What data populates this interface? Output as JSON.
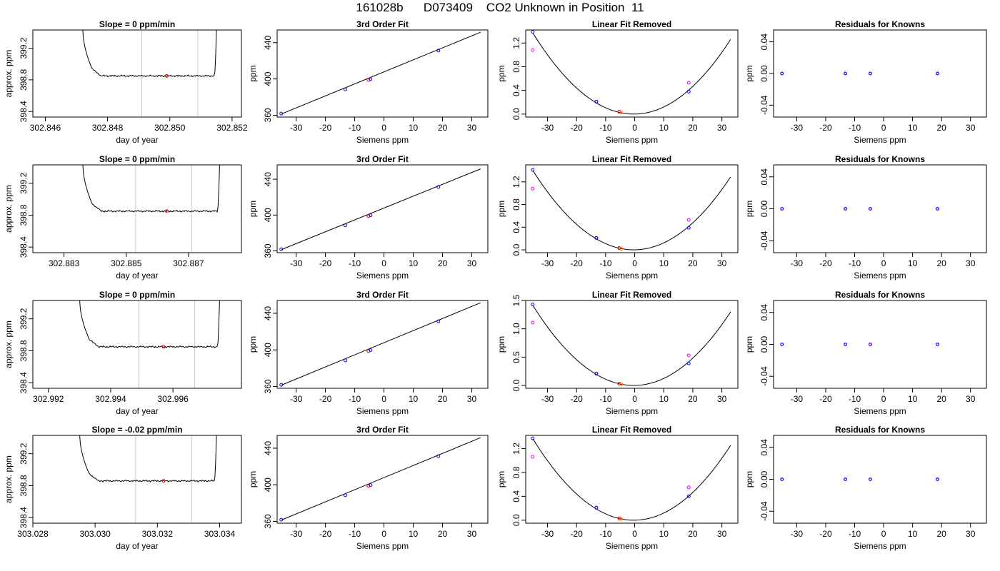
{
  "page_title": "161028b      D073409    CO2 Unknown in Position  11",
  "colors": {
    "axis": "#000000",
    "curve": "#000000",
    "vline": "#c8c8c8",
    "blue": "#0000ff",
    "magenta": "#ff00ff",
    "red": "#ff0000",
    "orange": "#ff8c00"
  },
  "chart_data": [
    {
      "type": "line",
      "row": 0,
      "col": 0,
      "title": "Slope =  0  ppm/min",
      "xlabel": "day of year",
      "ylabel": "approx. ppm",
      "xlim": [
        302.8456,
        302.8523
      ],
      "ylim": [
        398.33,
        399.43
      ],
      "xticks": [
        302.846,
        302.848,
        302.85,
        302.852
      ],
      "xtick_labels": [
        "302.846",
        "302.848",
        "302.850",
        "302.852"
      ],
      "yticks": [
        398.4,
        398.8,
        399.2
      ],
      "ytick_labels": [
        "398.4",
        "398.8",
        "399.2"
      ],
      "trace": {
        "x_start": 302.8472,
        "x_end": 302.8515,
        "baseline": 398.85,
        "rise_to": 399.45
      },
      "vlines": [
        302.8491,
        302.8509
      ],
      "marker": {
        "x": 302.8499,
        "y": 398.85
      }
    },
    {
      "type": "scatter",
      "row": 0,
      "col": 1,
      "title": "3rd Order Fit",
      "xlabel": "Siemens ppm",
      "ylabel": "ppm",
      "xlim": [
        -36.5,
        35.5
      ],
      "ylim": [
        358,
        454
      ],
      "xticks": [
        -30,
        -20,
        -10,
        0,
        10,
        20,
        30
      ],
      "yticks": [
        360,
        400,
        440
      ],
      "line": {
        "x0": -35,
        "y0": 361.5,
        "x1": 33,
        "y1": 451.5
      },
      "points": [
        [
          -35.1,
          361.8
        ],
        [
          -13.2,
          388.5
        ],
        [
          -5.3,
          398.9
        ],
        [
          -4.6,
          399.7
        ],
        [
          18.6,
          431.3
        ]
      ]
    },
    {
      "type": "scatter",
      "row": 0,
      "col": 2,
      "title": "Linear Fit Removed",
      "xlabel": "Siemens ppm",
      "ylabel": "ppm",
      "xlim": [
        -37.5,
        35.5
      ],
      "ylim": [
        -0.05,
        1.42
      ],
      "xticks": [
        -30,
        -20,
        -10,
        0,
        10,
        20,
        30
      ],
      "yticks": [
        0.0,
        0.4,
        0.8,
        1.2
      ],
      "ytick_labels": [
        "0.0",
        "0.4",
        "0.8",
        "1.2"
      ],
      "curve": {
        "a": 0.001135,
        "h": -0.3,
        "k": 0.0,
        "x0": -35,
        "x1": 33
      },
      "points_blue": [
        [
          -35.1,
          1.39
        ],
        [
          -13.2,
          0.21
        ],
        [
          -5.3,
          0.04
        ],
        [
          -4.6,
          0.03
        ],
        [
          18.6,
          0.38
        ]
      ],
      "points_magenta": [
        [
          -35.1,
          1.08
        ],
        [
          -13.2,
          0.21
        ],
        [
          -5.3,
          0.04
        ],
        [
          18.6,
          0.53
        ]
      ]
    },
    {
      "type": "scatter",
      "row": 0,
      "col": 3,
      "title": "Residuals for Knowns",
      "xlabel": "Siemens ppm",
      "ylabel": "ppm",
      "xlim": [
        -38,
        35.5
      ],
      "ylim": [
        -0.055,
        0.055
      ],
      "xticks": [
        -30,
        -20,
        -10,
        0,
        10,
        20,
        30
      ],
      "yticks": [
        -0.04,
        0.0,
        0.04
      ],
      "ytick_labels": [
        "-0.04",
        "0.00",
        "0.04"
      ],
      "points": [
        [
          -35.1,
          0
        ],
        [
          -13.2,
          0
        ],
        [
          -4.6,
          0
        ],
        [
          18.6,
          0
        ]
      ]
    },
    {
      "type": "line",
      "row": 1,
      "col": 0,
      "title": "Slope =  0  ppm/min",
      "xlabel": "day of year",
      "ylabel": "approx. ppm",
      "xlim": [
        302.882,
        302.8887
      ],
      "ylim": [
        398.33,
        399.43
      ],
      "xticks": [
        302.883,
        302.885,
        302.887
      ],
      "xtick_labels": [
        "302.883",
        "302.885",
        "302.887"
      ],
      "yticks": [
        398.4,
        398.8,
        399.2
      ],
      "ytick_labels": [
        "398.4",
        "398.8",
        "399.2"
      ],
      "trace": {
        "x_start": 302.8836,
        "x_end": 302.888,
        "baseline": 398.85,
        "rise_to": 399.45
      },
      "vlines": [
        302.8853,
        302.8871
      ],
      "marker": {
        "x": 302.8863,
        "y": 398.85
      }
    },
    {
      "type": "scatter",
      "row": 1,
      "col": 1,
      "title": "3rd Order Fit",
      "xlabel": "Siemens ppm",
      "ylabel": "ppm",
      "xlim": [
        -36.5,
        35.5
      ],
      "ylim": [
        358,
        456
      ],
      "xticks": [
        -30,
        -20,
        -10,
        0,
        10,
        20,
        30
      ],
      "yticks": [
        360,
        400,
        440
      ],
      "line": {
        "x0": -35,
        "y0": 361.5,
        "x1": 33,
        "y1": 451.5
      },
      "points": [
        [
          -35.1,
          361.8
        ],
        [
          -13.2,
          388.5
        ],
        [
          -5.3,
          398.9
        ],
        [
          -4.6,
          399.7
        ],
        [
          18.6,
          431.3
        ]
      ]
    },
    {
      "type": "scatter",
      "row": 1,
      "col": 2,
      "title": "Linear Fit Removed",
      "xlabel": "Siemens ppm",
      "ylabel": "ppm",
      "xlim": [
        -37.5,
        35.5
      ],
      "ylim": [
        -0.05,
        1.5
      ],
      "xticks": [
        -30,
        -20,
        -10,
        0,
        10,
        20,
        30
      ],
      "yticks": [
        0.0,
        0.4,
        0.8,
        1.2
      ],
      "ytick_labels": [
        "0.0",
        "0.4",
        "0.8",
        "1.2"
      ],
      "curve": {
        "a": 0.00116,
        "h": -0.3,
        "k": 0.0,
        "x0": -35,
        "x1": 33
      },
      "points_blue": [
        [
          -35.1,
          1.41
        ],
        [
          -13.2,
          0.21
        ],
        [
          -5.3,
          0.03
        ],
        [
          -4.6,
          0.02
        ],
        [
          18.6,
          0.39
        ]
      ],
      "points_magenta": [
        [
          -35.1,
          1.08
        ],
        [
          -13.2,
          0.21
        ],
        [
          -5.3,
          0.03
        ],
        [
          18.6,
          0.53
        ]
      ]
    },
    {
      "type": "scatter",
      "row": 1,
      "col": 3,
      "title": "Residuals for Knowns",
      "xlabel": "Siemens ppm",
      "ylabel": "ppm",
      "xlim": [
        -38,
        35.5
      ],
      "ylim": [
        -0.055,
        0.055
      ],
      "xticks": [
        -30,
        -20,
        -10,
        0,
        10,
        20,
        30
      ],
      "yticks": [
        -0.04,
        0.0,
        0.04
      ],
      "ytick_labels": [
        "-0.04",
        "0.00",
        "0.04"
      ],
      "points": [
        [
          -35.1,
          0
        ],
        [
          -13.2,
          0
        ],
        [
          -4.6,
          0
        ],
        [
          18.6,
          0
        ]
      ]
    },
    {
      "type": "line",
      "row": 2,
      "col": 0,
      "title": "Slope =  0  ppm/min",
      "xlabel": "day of year",
      "ylabel": "approx. ppm",
      "xlim": [
        302.9915,
        302.9982
      ],
      "ylim": [
        398.33,
        399.43
      ],
      "xticks": [
        302.992,
        302.994,
        302.996
      ],
      "xtick_labels": [
        "302.992",
        "302.994",
        "302.996"
      ],
      "yticks": [
        398.4,
        398.8,
        399.2
      ],
      "ytick_labels": [
        "398.4",
        "398.8",
        "399.2"
      ],
      "trace": {
        "x_start": 302.993,
        "x_end": 302.9975,
        "baseline": 398.85,
        "rise_to": 399.45
      },
      "vlines": [
        302.9949,
        302.9967
      ],
      "marker": {
        "x": 302.9957,
        "y": 398.85
      }
    },
    {
      "type": "scatter",
      "row": 2,
      "col": 1,
      "title": "3rd Order Fit",
      "xlabel": "Siemens ppm",
      "ylabel": "ppm",
      "xlim": [
        -36.5,
        35.5
      ],
      "ylim": [
        358,
        454
      ],
      "xticks": [
        -30,
        -20,
        -10,
        0,
        10,
        20,
        30
      ],
      "yticks": [
        360,
        400,
        440
      ],
      "line": {
        "x0": -35,
        "y0": 361.5,
        "x1": 33,
        "y1": 451.5
      },
      "points": [
        [
          -35.1,
          361.8
        ],
        [
          -13.2,
          388.5
        ],
        [
          -5.3,
          398.9
        ],
        [
          -4.6,
          399.7
        ],
        [
          18.6,
          431.3
        ]
      ]
    },
    {
      "type": "scatter",
      "row": 2,
      "col": 2,
      "title": "Linear Fit Removed",
      "xlabel": "Siemens ppm",
      "ylabel": "ppm",
      "xlim": [
        -37.5,
        35.5
      ],
      "ylim": [
        -0.05,
        1.5
      ],
      "xticks": [
        -30,
        -20,
        -10,
        0,
        10,
        20,
        30
      ],
      "yticks": [
        0.0,
        0.5,
        1.0,
        1.5
      ],
      "ytick_labels": [
        "0.0",
        "0.5",
        "1.0",
        "1.5"
      ],
      "curve": {
        "a": 0.00117,
        "h": -0.3,
        "k": 0.0,
        "x0": -35,
        "x1": 33
      },
      "points_blue": [
        [
          -35.1,
          1.43
        ],
        [
          -13.2,
          0.21
        ],
        [
          -5.3,
          0.03
        ],
        [
          -4.6,
          0.02
        ],
        [
          18.6,
          0.39
        ]
      ],
      "points_magenta": [
        [
          -35.1,
          1.11
        ],
        [
          -13.2,
          0.21
        ],
        [
          -5.3,
          0.03
        ],
        [
          18.6,
          0.53
        ]
      ]
    },
    {
      "type": "scatter",
      "row": 2,
      "col": 3,
      "title": "Residuals for Knowns",
      "xlabel": "Siemens ppm",
      "ylabel": "ppm",
      "xlim": [
        -38,
        35.5
      ],
      "ylim": [
        -0.055,
        0.055
      ],
      "xticks": [
        -30,
        -20,
        -10,
        0,
        10,
        20,
        30
      ],
      "yticks": [
        -0.04,
        0.0,
        0.04
      ],
      "ytick_labels": [
        "-0.04",
        "0.00",
        "0.04"
      ],
      "points": [
        [
          -35.1,
          0
        ],
        [
          -13.2,
          0
        ],
        [
          -4.6,
          0
        ],
        [
          18.6,
          0
        ]
      ]
    },
    {
      "type": "line",
      "row": 3,
      "col": 0,
      "title": "Slope =  -0.02  ppm/min",
      "xlabel": "day of year",
      "ylabel": "approx. ppm",
      "xlim": [
        303.028,
        303.0347
      ],
      "ylim": [
        398.33,
        399.43
      ],
      "xticks": [
        303.028,
        303.03,
        303.032,
        303.034
      ],
      "xtick_labels": [
        "303.028",
        "303.030",
        "303.032",
        "303.034"
      ],
      "yticks": [
        398.4,
        398.8,
        399.2
      ],
      "ytick_labels": [
        "398.4",
        "398.8",
        "399.2"
      ],
      "trace": {
        "x_start": 303.0295,
        "x_end": 303.0339,
        "baseline": 398.86,
        "rise_to": 399.45
      },
      "vlines": [
        303.0313,
        303.0331
      ],
      "marker": {
        "x": 303.0322,
        "y": 398.86
      }
    },
    {
      "type": "scatter",
      "row": 3,
      "col": 1,
      "title": "3rd Order Fit",
      "xlabel": "Siemens ppm",
      "ylabel": "ppm",
      "xlim": [
        -36.5,
        35.5
      ],
      "ylim": [
        358,
        454
      ],
      "xticks": [
        -30,
        -20,
        -10,
        0,
        10,
        20,
        30
      ],
      "yticks": [
        360,
        400,
        440
      ],
      "line": {
        "x0": -35,
        "y0": 361.5,
        "x1": 33,
        "y1": 451.5
      },
      "points": [
        [
          -35.1,
          361.8
        ],
        [
          -13.2,
          388.5
        ],
        [
          -5.3,
          398.9
        ],
        [
          -4.6,
          399.7
        ],
        [
          18.6,
          431.3
        ]
      ]
    },
    {
      "type": "scatter",
      "row": 3,
      "col": 2,
      "title": "Linear Fit Removed",
      "xlabel": "Siemens ppm",
      "ylabel": "ppm",
      "xlim": [
        -37.5,
        35.5
      ],
      "ylim": [
        -0.05,
        1.42
      ],
      "xticks": [
        -30,
        -20,
        -10,
        0,
        10,
        20,
        30
      ],
      "yticks": [
        0.0,
        0.4,
        0.8,
        1.2
      ],
      "ytick_labels": [
        "0.0",
        "0.4",
        "0.8",
        "1.2"
      ],
      "curve": {
        "a": 0.00113,
        "h": -0.3,
        "k": 0.0,
        "x0": -35,
        "x1": 33
      },
      "points_blue": [
        [
          -35.1,
          1.37
        ],
        [
          -13.2,
          0.21
        ],
        [
          -5.3,
          0.03
        ],
        [
          -4.6,
          0.02
        ],
        [
          18.6,
          0.4
        ]
      ],
      "points_magenta": [
        [
          -35.1,
          1.06
        ],
        [
          -13.2,
          0.21
        ],
        [
          -5.3,
          0.03
        ],
        [
          18.6,
          0.55
        ]
      ]
    },
    {
      "type": "scatter",
      "row": 3,
      "col": 3,
      "title": "Residuals for Knowns",
      "xlabel": "Siemens ppm",
      "ylabel": "ppm",
      "xlim": [
        -38,
        35.5
      ],
      "ylim": [
        -0.055,
        0.055
      ],
      "xticks": [
        -30,
        -20,
        -10,
        0,
        10,
        20,
        30
      ],
      "yticks": [
        -0.04,
        0.0,
        0.04
      ],
      "ytick_labels": [
        "-0.04",
        "0.00",
        "0.04"
      ],
      "points": [
        [
          -35.1,
          0
        ],
        [
          -13.2,
          0
        ],
        [
          -4.6,
          0
        ],
        [
          18.6,
          0
        ]
      ]
    }
  ]
}
